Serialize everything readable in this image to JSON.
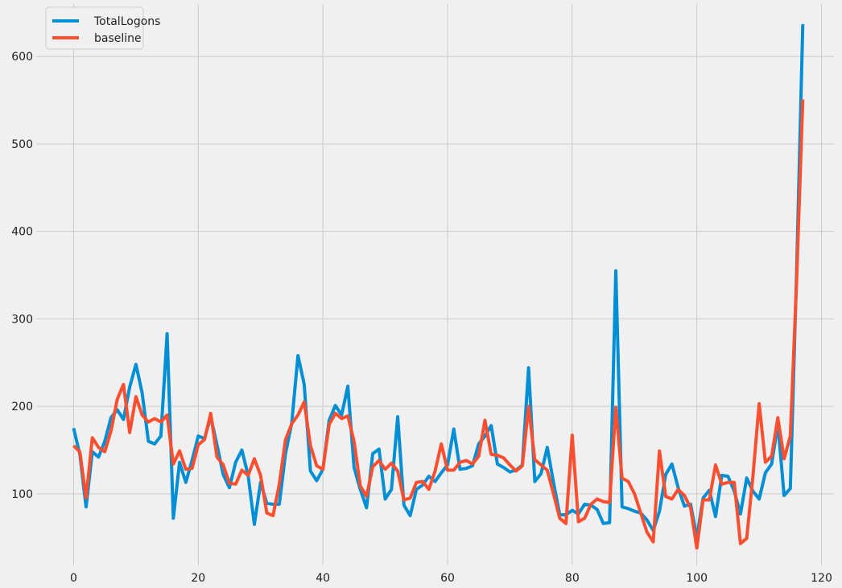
{
  "chart_data": {
    "type": "line",
    "title": "",
    "xlabel": "",
    "ylabel": "",
    "xlim": [
      -6,
      122
    ],
    "ylim": [
      18,
      660
    ],
    "grid": true,
    "legend_position": "top-left",
    "x_ticks": [
      0,
      20,
      40,
      60,
      80,
      100,
      120
    ],
    "y_ticks": [
      100,
      200,
      300,
      400,
      500,
      600
    ],
    "x": [
      0,
      1,
      2,
      3,
      4,
      5,
      6,
      7,
      8,
      9,
      10,
      11,
      12,
      13,
      14,
      15,
      16,
      17,
      18,
      19,
      20,
      21,
      22,
      23,
      24,
      25,
      26,
      27,
      28,
      29,
      30,
      31,
      32,
      33,
      34,
      35,
      36,
      37,
      38,
      39,
      40,
      41,
      42,
      43,
      44,
      45,
      46,
      47,
      48,
      49,
      50,
      51,
      52,
      53,
      54,
      55,
      56,
      57,
      58,
      59,
      60,
      61,
      62,
      63,
      64,
      65,
      66,
      67,
      68,
      69,
      70,
      71,
      72,
      73,
      74,
      75,
      76,
      77,
      78,
      79,
      80,
      81,
      82,
      83,
      84,
      85,
      86,
      87,
      88,
      89,
      90,
      91,
      92,
      93,
      94,
      95,
      96,
      97,
      98,
      99,
      100,
      101,
      102,
      103,
      104,
      105,
      106,
      107,
      108,
      109,
      110,
      111,
      112,
      113,
      114,
      115,
      116,
      117
    ],
    "series": [
      {
        "name": "TotalLogons",
        "color": "#008fd5",
        "values": [
          175,
          145,
          85,
          148,
          142,
          160,
          187,
          196,
          185,
          222,
          248,
          215,
          160,
          157,
          166,
          283,
          72,
          136,
          113,
          138,
          166,
          163,
          188,
          156,
          122,
          107,
          136,
          150,
          121,
          65,
          113,
          89,
          88,
          88,
          146,
          181,
          258,
          225,
          126,
          115,
          128,
          184,
          201,
          190,
          223,
          130,
          105,
          84,
          146,
          151,
          94,
          105,
          188,
          87,
          75,
          105,
          110,
          120,
          114,
          124,
          133,
          174,
          128,
          129,
          132,
          157,
          166,
          178,
          134,
          130,
          125,
          127,
          133,
          244,
          114,
          123,
          153,
          113,
          76,
          76,
          81,
          77,
          88,
          87,
          82,
          66,
          67,
          355,
          85,
          83,
          80,
          78,
          70,
          58,
          80,
          122,
          134,
          107,
          86,
          88,
          50,
          95,
          104,
          74,
          121,
          120,
          103,
          77,
          118,
          103,
          94,
          124,
          134,
          180,
          98,
          106,
          351,
          637
        ]
      },
      {
        "name": "baseline",
        "color": "#fc4f30",
        "values": [
          155,
          148,
          95,
          164,
          153,
          148,
          172,
          208,
          225,
          170,
          211,
          190,
          182,
          186,
          182,
          190,
          134,
          149,
          128,
          129,
          156,
          162,
          192,
          142,
          133,
          112,
          111,
          127,
          121,
          140,
          121,
          78,
          75,
          111,
          162,
          180,
          190,
          205,
          155,
          132,
          128,
          179,
          192,
          186,
          189,
          160,
          109,
          97,
          131,
          138,
          128,
          135,
          126,
          93,
          95,
          113,
          114,
          105,
          126,
          157,
          127,
          127,
          136,
          138,
          134,
          143,
          184,
          145,
          144,
          141,
          133,
          126,
          132,
          200,
          139,
          133,
          127,
          100,
          72,
          66,
          167,
          68,
          72,
          88,
          94,
          91,
          90,
          199,
          118,
          114,
          100,
          78,
          56,
          45,
          149,
          97,
          94,
          105,
          98,
          84,
          38,
          93,
          93,
          133,
          111,
          113,
          113,
          43,
          49,
          120,
          203,
          136,
          143,
          187,
          140,
          166,
          342,
          551
        ]
      }
    ]
  }
}
